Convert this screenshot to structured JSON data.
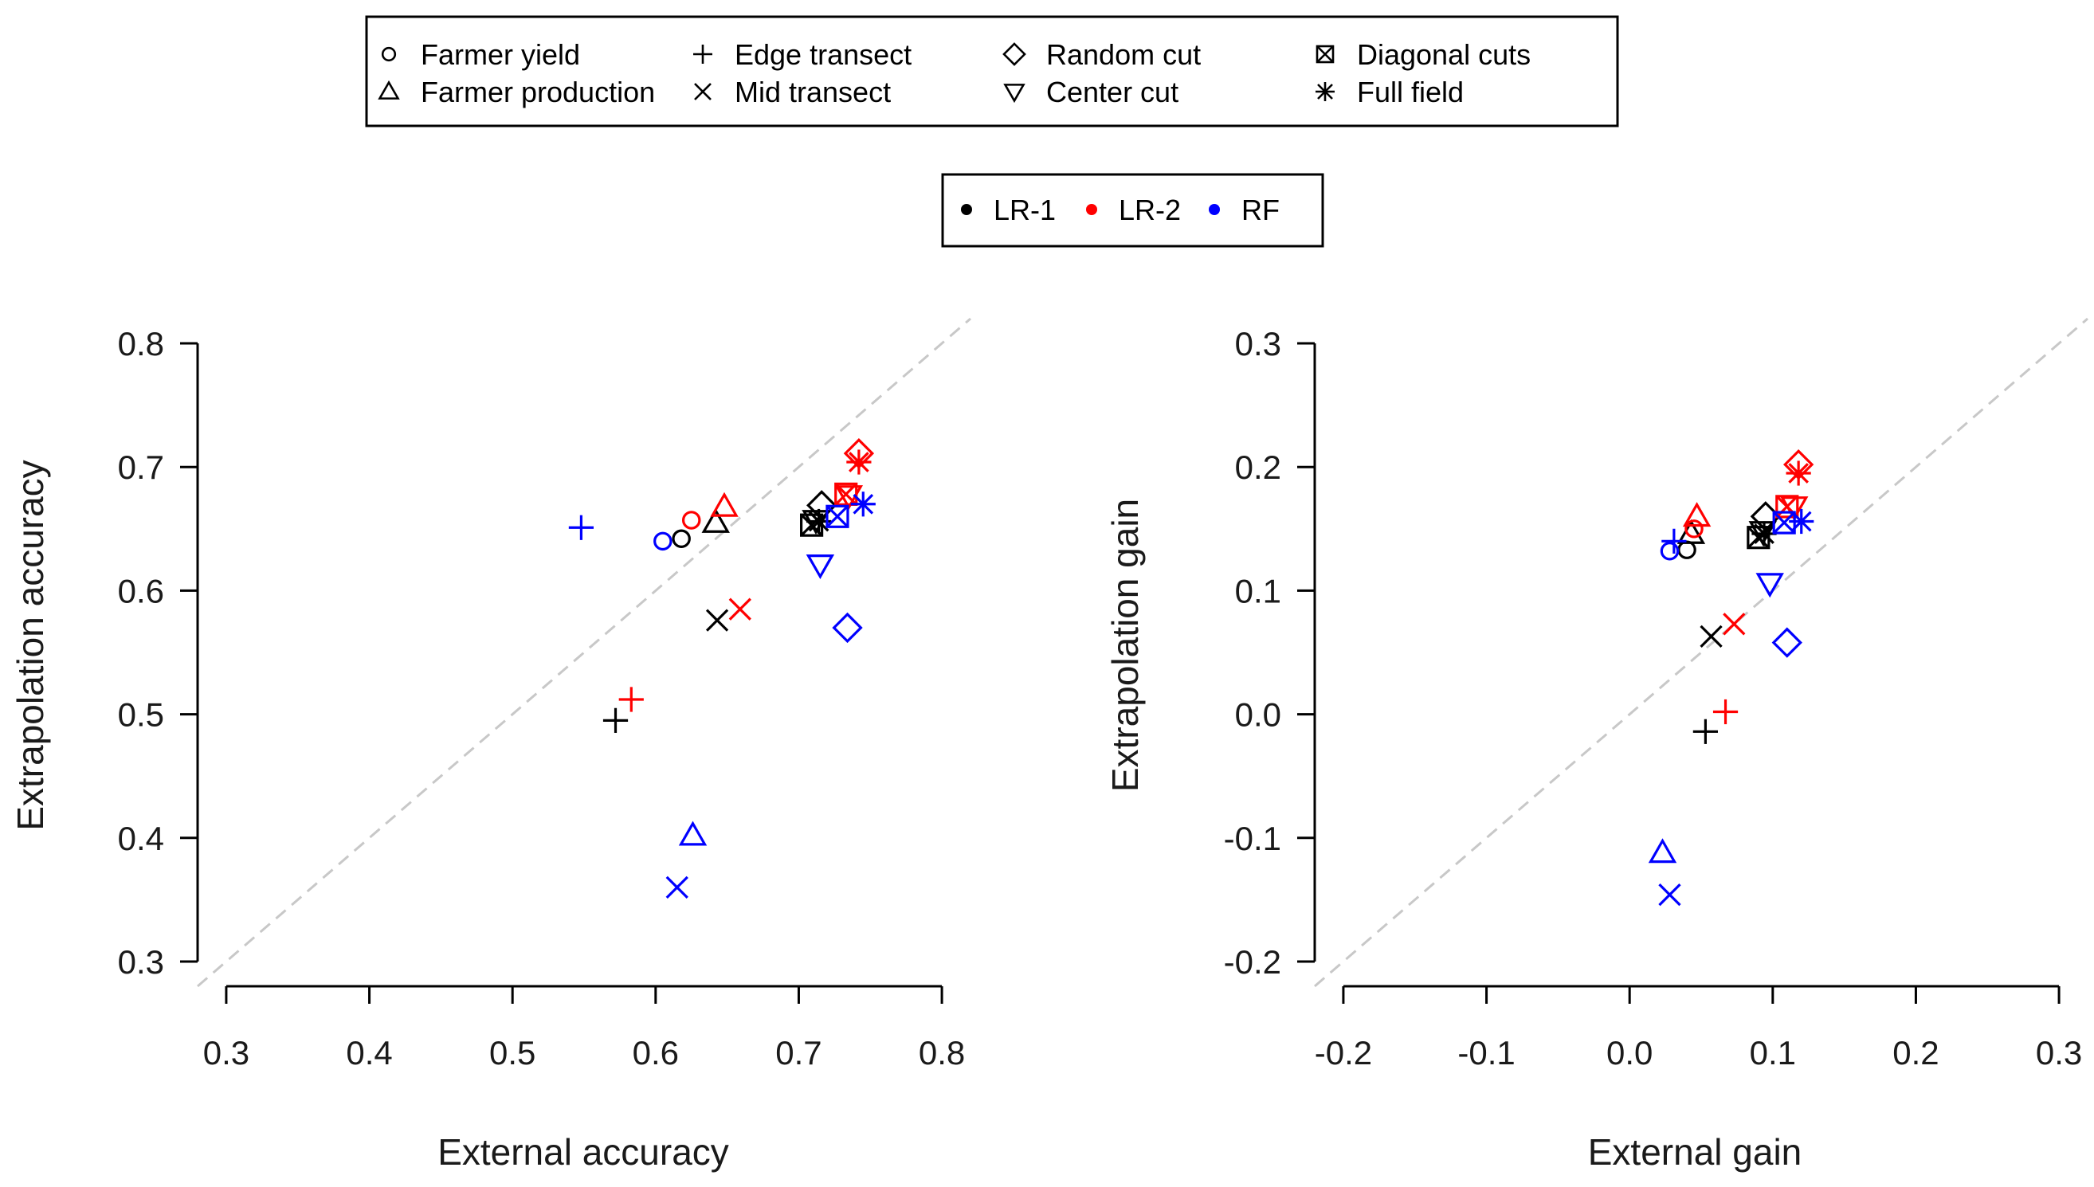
{
  "legend_shapes": {
    "entries": [
      {
        "label": "Farmer yield",
        "marker": "circle"
      },
      {
        "label": "Farmer production",
        "marker": "triangle"
      },
      {
        "label": "Edge transect",
        "marker": "plus"
      },
      {
        "label": "Mid transect",
        "marker": "cross"
      },
      {
        "label": "Random cut",
        "marker": "diamond"
      },
      {
        "label": "Center cut",
        "marker": "triangle-down"
      },
      {
        "label": "Diagonal cuts",
        "marker": "box-x"
      },
      {
        "label": "Full field",
        "marker": "asterisk"
      }
    ]
  },
  "legend_models": {
    "entries": [
      {
        "label": "LR-1",
        "color": "#000000"
      },
      {
        "label": "LR-2",
        "color": "#ff0000"
      },
      {
        "label": "RF",
        "color": "#0000ff"
      }
    ]
  },
  "colors": {
    "LR-1": "#000000",
    "LR-2": "#ff0000",
    "RF": "#0000ff",
    "diagonal": "#c8c8c8"
  },
  "chart_data": [
    {
      "type": "scatter",
      "xlabel": "External accuracy",
      "ylabel": "Extrapolation accuracy",
      "xlim": [
        0.28,
        0.82
      ],
      "ylim": [
        0.28,
        0.82
      ],
      "xticks": [
        0.3,
        0.4,
        0.5,
        0.6,
        0.7,
        0.8
      ],
      "yticks": [
        0.3,
        0.4,
        0.5,
        0.6,
        0.7,
        0.8
      ],
      "reference_line": "y = x",
      "points": [
        {
          "model": "LR-1",
          "marker": "circle",
          "x": 0.618,
          "y": 0.642
        },
        {
          "model": "LR-1",
          "marker": "triangle",
          "x": 0.642,
          "y": 0.655
        },
        {
          "model": "LR-1",
          "marker": "plus",
          "x": 0.572,
          "y": 0.495
        },
        {
          "model": "LR-1",
          "marker": "cross",
          "x": 0.643,
          "y": 0.576
        },
        {
          "model": "LR-1",
          "marker": "diamond",
          "x": 0.716,
          "y": 0.669
        },
        {
          "model": "LR-1",
          "marker": "triangle-down",
          "x": 0.712,
          "y": 0.657
        },
        {
          "model": "LR-1",
          "marker": "box-x",
          "x": 0.709,
          "y": 0.653
        },
        {
          "model": "LR-1",
          "marker": "asterisk",
          "x": 0.714,
          "y": 0.656
        },
        {
          "model": "LR-2",
          "marker": "circle",
          "x": 0.625,
          "y": 0.657
        },
        {
          "model": "LR-2",
          "marker": "triangle",
          "x": 0.648,
          "y": 0.668
        },
        {
          "model": "LR-2",
          "marker": "plus",
          "x": 0.583,
          "y": 0.512
        },
        {
          "model": "LR-2",
          "marker": "cross",
          "x": 0.659,
          "y": 0.585
        },
        {
          "model": "LR-2",
          "marker": "diamond",
          "x": 0.742,
          "y": 0.711
        },
        {
          "model": "LR-2",
          "marker": "triangle-down",
          "x": 0.735,
          "y": 0.677
        },
        {
          "model": "LR-2",
          "marker": "box-x",
          "x": 0.733,
          "y": 0.678
        },
        {
          "model": "LR-2",
          "marker": "asterisk",
          "x": 0.742,
          "y": 0.704
        },
        {
          "model": "RF",
          "marker": "circle",
          "x": 0.605,
          "y": 0.64
        },
        {
          "model": "RF",
          "marker": "triangle",
          "x": 0.626,
          "y": 0.402
        },
        {
          "model": "RF",
          "marker": "plus",
          "x": 0.548,
          "y": 0.651
        },
        {
          "model": "RF",
          "marker": "cross",
          "x": 0.615,
          "y": 0.36
        },
        {
          "model": "RF",
          "marker": "diamond",
          "x": 0.734,
          "y": 0.57
        },
        {
          "model": "RF",
          "marker": "triangle-down",
          "x": 0.715,
          "y": 0.621
        },
        {
          "model": "RF",
          "marker": "box-x",
          "x": 0.727,
          "y": 0.66
        },
        {
          "model": "RF",
          "marker": "asterisk",
          "x": 0.745,
          "y": 0.67
        }
      ]
    },
    {
      "type": "scatter",
      "xlabel": "External gain",
      "ylabel": "Extrapolation gain",
      "xlim": [
        -0.22,
        0.32
      ],
      "ylim": [
        -0.22,
        0.32
      ],
      "xticks": [
        -0.2,
        -0.1,
        0.0,
        0.1,
        0.2,
        0.3
      ],
      "yticks": [
        -0.2,
        -0.1,
        0.0,
        0.1,
        0.2,
        0.3
      ],
      "xticklabels": [
        "-0.2",
        "-0.1",
        "0.0",
        "0.1",
        "0.2",
        "0.3"
      ],
      "yticklabels": [
        "-0.2",
        "-0.1",
        "0.0",
        "0.1",
        "0.2",
        "0.3"
      ],
      "reference_line": "y = x",
      "points": [
        {
          "model": "LR-1",
          "marker": "circle",
          "x": 0.04,
          "y": 0.133
        },
        {
          "model": "LR-1",
          "marker": "triangle",
          "x": 0.043,
          "y": 0.146
        },
        {
          "model": "LR-1",
          "marker": "plus",
          "x": 0.053,
          "y": -0.014
        },
        {
          "model": "LR-1",
          "marker": "cross",
          "x": 0.057,
          "y": 0.063
        },
        {
          "model": "LR-1",
          "marker": "diamond",
          "x": 0.095,
          "y": 0.16
        },
        {
          "model": "LR-1",
          "marker": "triangle-down",
          "x": 0.093,
          "y": 0.148
        },
        {
          "model": "LR-1",
          "marker": "box-x",
          "x": 0.09,
          "y": 0.143
        },
        {
          "model": "LR-1",
          "marker": "asterisk",
          "x": 0.094,
          "y": 0.146
        },
        {
          "model": "LR-2",
          "marker": "circle",
          "x": 0.045,
          "y": 0.15
        },
        {
          "model": "LR-2",
          "marker": "triangle",
          "x": 0.047,
          "y": 0.16
        },
        {
          "model": "LR-2",
          "marker": "plus",
          "x": 0.067,
          "y": 0.002
        },
        {
          "model": "LR-2",
          "marker": "cross",
          "x": 0.073,
          "y": 0.073
        },
        {
          "model": "LR-2",
          "marker": "diamond",
          "x": 0.118,
          "y": 0.202
        },
        {
          "model": "LR-2",
          "marker": "triangle-down",
          "x": 0.115,
          "y": 0.168
        },
        {
          "model": "LR-2",
          "marker": "box-x",
          "x": 0.11,
          "y": 0.168
        },
        {
          "model": "LR-2",
          "marker": "asterisk",
          "x": 0.118,
          "y": 0.195
        },
        {
          "model": "RF",
          "marker": "circle",
          "x": 0.028,
          "y": 0.132
        },
        {
          "model": "RF",
          "marker": "triangle",
          "x": 0.023,
          "y": -0.112
        },
        {
          "model": "RF",
          "marker": "plus",
          "x": 0.031,
          "y": 0.14
        },
        {
          "model": "RF",
          "marker": "cross",
          "x": 0.028,
          "y": -0.146
        },
        {
          "model": "RF",
          "marker": "diamond",
          "x": 0.11,
          "y": 0.058
        },
        {
          "model": "RF",
          "marker": "triangle-down",
          "x": 0.098,
          "y": 0.106
        },
        {
          "model": "RF",
          "marker": "box-x",
          "x": 0.108,
          "y": 0.155
        },
        {
          "model": "RF",
          "marker": "asterisk",
          "x": 0.12,
          "y": 0.156
        }
      ]
    }
  ]
}
